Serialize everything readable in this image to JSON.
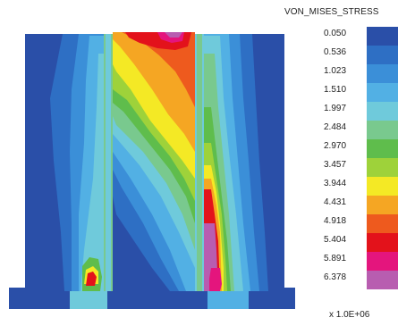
{
  "legend": {
    "title": "VON_MISES_STRESS",
    "scale_label": "x 1.0E+06",
    "levels": [
      {
        "value": "0.050",
        "color": "#2a4fa8"
      },
      {
        "value": "0.536",
        "color": "#2e6fc4"
      },
      {
        "value": "1.023",
        "color": "#3b8fd8"
      },
      {
        "value": "1.510",
        "color": "#52b0e4"
      },
      {
        "value": "1.997",
        "color": "#6fcadb"
      },
      {
        "value": "2.484",
        "color": "#79c98e"
      },
      {
        "value": "2.970",
        "color": "#5fbd4c"
      },
      {
        "value": "3.457",
        "color": "#9ed23a"
      },
      {
        "value": "3.944",
        "color": "#f4e925"
      },
      {
        "value": "4.431",
        "color": "#f5a623"
      },
      {
        "value": "4.918",
        "color": "#ee5a1e"
      },
      {
        "value": "5.404",
        "color": "#e3121b"
      },
      {
        "value": "5.891",
        "color": "#e4157d"
      },
      {
        "value": "6.378",
        "color": "#b85db0"
      }
    ]
  }
}
